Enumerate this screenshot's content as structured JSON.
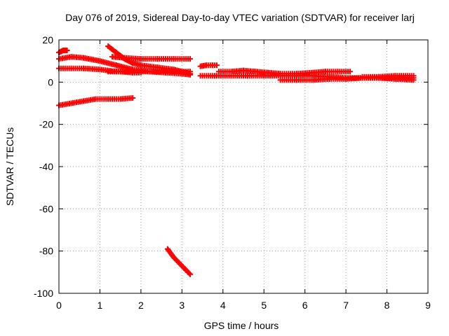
{
  "chart_data": {
    "type": "scatter",
    "title": "Day 076 of 2019, Sidereal Day-to-day VTEC variation (SDTVAR) for receiver larj",
    "xlabel": "GPS time / hours",
    "ylabel": "SDTVAR / TECUs",
    "xlim": [
      0,
      9
    ],
    "ylim": [
      -100,
      20
    ],
    "x_ticks": [
      "0",
      "1",
      "2",
      "3",
      "4",
      "5",
      "6",
      "7",
      "8",
      "9"
    ],
    "y_ticks": [
      "20",
      "0",
      "-20",
      "-40",
      "-60",
      "-80",
      "-100"
    ],
    "grid": true,
    "legend": "none",
    "marker_color": "#ff0000",
    "series": [
      {
        "x": [
          0.0,
          0.05,
          0.1,
          0.15,
          0.2
        ],
        "y": [
          14,
          14.5,
          15,
          15,
          15
        ]
      },
      {
        "x": [
          0.0,
          0.3,
          0.6,
          1.0,
          1.4,
          1.8,
          2.2,
          2.6,
          3.0,
          3.2
        ],
        "y": [
          11,
          12,
          11.5,
          10,
          8,
          6,
          5,
          4.5,
          4,
          3.5
        ]
      },
      {
        "x": [
          0.0,
          0.3,
          0.6,
          1.0,
          1.4,
          1.8,
          2.2,
          2.6,
          3.0,
          3.2
        ],
        "y": [
          6.5,
          6.5,
          6.5,
          6,
          5,
          5,
          5,
          5,
          5,
          5
        ]
      },
      {
        "x": [
          1.2,
          1.4,
          1.6,
          1.8,
          2.0,
          2.4,
          2.8,
          3.2
        ],
        "y": [
          17,
          14,
          11,
          9,
          8,
          7,
          6,
          4
        ]
      },
      {
        "x": [
          1.3,
          1.6,
          2.0,
          2.4,
          2.8,
          3.2
        ],
        "y": [
          12,
          11.5,
          11,
          11,
          11,
          11
        ]
      },
      {
        "x": [
          1.2,
          1.5,
          1.8,
          2.0
        ],
        "y": [
          5,
          5,
          4.5,
          4.5
        ]
      },
      {
        "x": [
          0.0,
          0.3,
          0.6,
          0.9,
          1.2,
          1.5,
          1.8
        ],
        "y": [
          -11,
          -10,
          -9,
          -8,
          -8,
          -8,
          -7.5
        ]
      },
      {
        "x": [
          2.65,
          2.8,
          2.95,
          3.1,
          3.2
        ],
        "y": [
          -79,
          -83,
          -86,
          -89,
          -91
        ]
      },
      {
        "x": [
          3.45,
          3.6,
          3.75,
          3.85
        ],
        "y": [
          7.5,
          8,
          8,
          8
        ]
      },
      {
        "x": [
          3.45,
          3.8,
          4.2,
          4.6,
          5.0,
          5.4,
          5.8,
          6.2,
          6.6,
          7.0,
          7.4,
          7.8,
          8.2,
          8.65
        ],
        "y": [
          3,
          3,
          3,
          3,
          3,
          3,
          3,
          3,
          2.5,
          2,
          2,
          2,
          2,
          2
        ]
      },
      {
        "x": [
          3.9,
          4.2,
          4.5,
          4.8,
          5.1,
          5.4
        ],
        "y": [
          5,
          5,
          5.5,
          5,
          4.5,
          4
        ]
      },
      {
        "x": [
          5.4,
          5.8,
          6.2,
          6.5,
          6.8,
          7.1
        ],
        "y": [
          4,
          4,
          4.5,
          5,
          5,
          5
        ]
      },
      {
        "x": [
          5.4,
          5.8,
          6.2,
          6.6,
          7.0,
          7.4,
          7.8,
          8.2,
          8.65
        ],
        "y": [
          1,
          1,
          1,
          1.5,
          1.5,
          2,
          2,
          1.5,
          1
        ]
      },
      {
        "x": [
          7.4,
          7.8,
          8.2,
          8.65
        ],
        "y": [
          2.5,
          2.5,
          3,
          3
        ]
      }
    ]
  }
}
